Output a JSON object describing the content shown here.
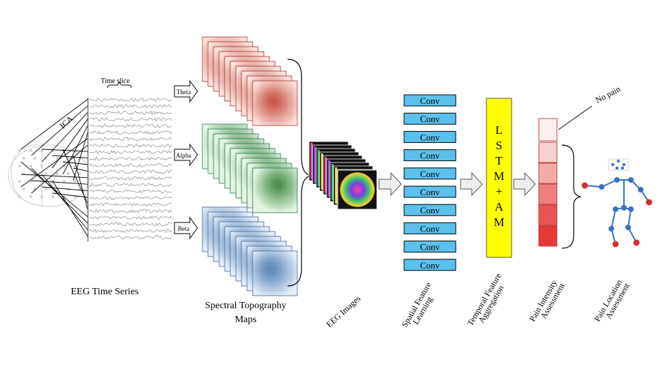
{
  "labels": {
    "ica": "ICA",
    "time_slice": "Time slice",
    "eeg_time_series": "EEG Time Series",
    "spectral_topography_maps_line1": "Spectral Topography",
    "spectral_topography_maps_line2": "Maps",
    "eeg_images": "EEG Images",
    "spatial_feature_line1": "Spatial Feature",
    "spatial_feature_line2": "Learning",
    "temporal_feature_line1": "Temporal Feature",
    "temporal_feature_line2": "Aggregation",
    "pain_intensity_line1": "Pain Intensity",
    "pain_intensity_line2": "Assessment",
    "pain_location_line1": "Pain Location",
    "pain_location_line2": "Assessment",
    "no_pain": "No pain"
  },
  "bands": [
    "Theta",
    "Alpha",
    "Beta"
  ],
  "conv_blocks": [
    "Conv",
    "Conv",
    "Conv",
    "Conv",
    "Conv",
    "Conv",
    "Conv",
    "Conv",
    "Conv",
    "Conv"
  ],
  "lstm_letters": [
    "L",
    "S",
    "T",
    "M",
    "+",
    "A",
    "M"
  ],
  "colors": {
    "theta": "#e8a89a",
    "theta_dark": "#c0392b",
    "alpha": "#9fd39a",
    "alpha_dark": "#2e7d32",
    "beta": "#b9d3ee",
    "beta_dark": "#3a6ea5",
    "conv_fill": "#5bc0eb",
    "lstm_fill": "#ffff00",
    "intensity_top": "#fde7e7",
    "intensity_bottom": "#e53935",
    "skeleton_blue": "#3b6fc4",
    "skeleton_red": "#d32f2f"
  }
}
